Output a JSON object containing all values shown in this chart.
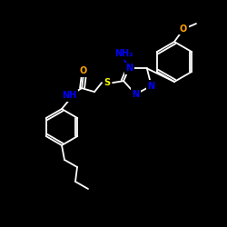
{
  "bg_color": "#000000",
  "bond_color": "#ffffff",
  "N_color": "#0000ff",
  "O_color": "#ffa500",
  "S_color": "#ffff00",
  "figsize": [
    2.5,
    2.5
  ],
  "dpi": 100,
  "xlim": [
    0,
    250
  ],
  "ylim": [
    0,
    250
  ]
}
